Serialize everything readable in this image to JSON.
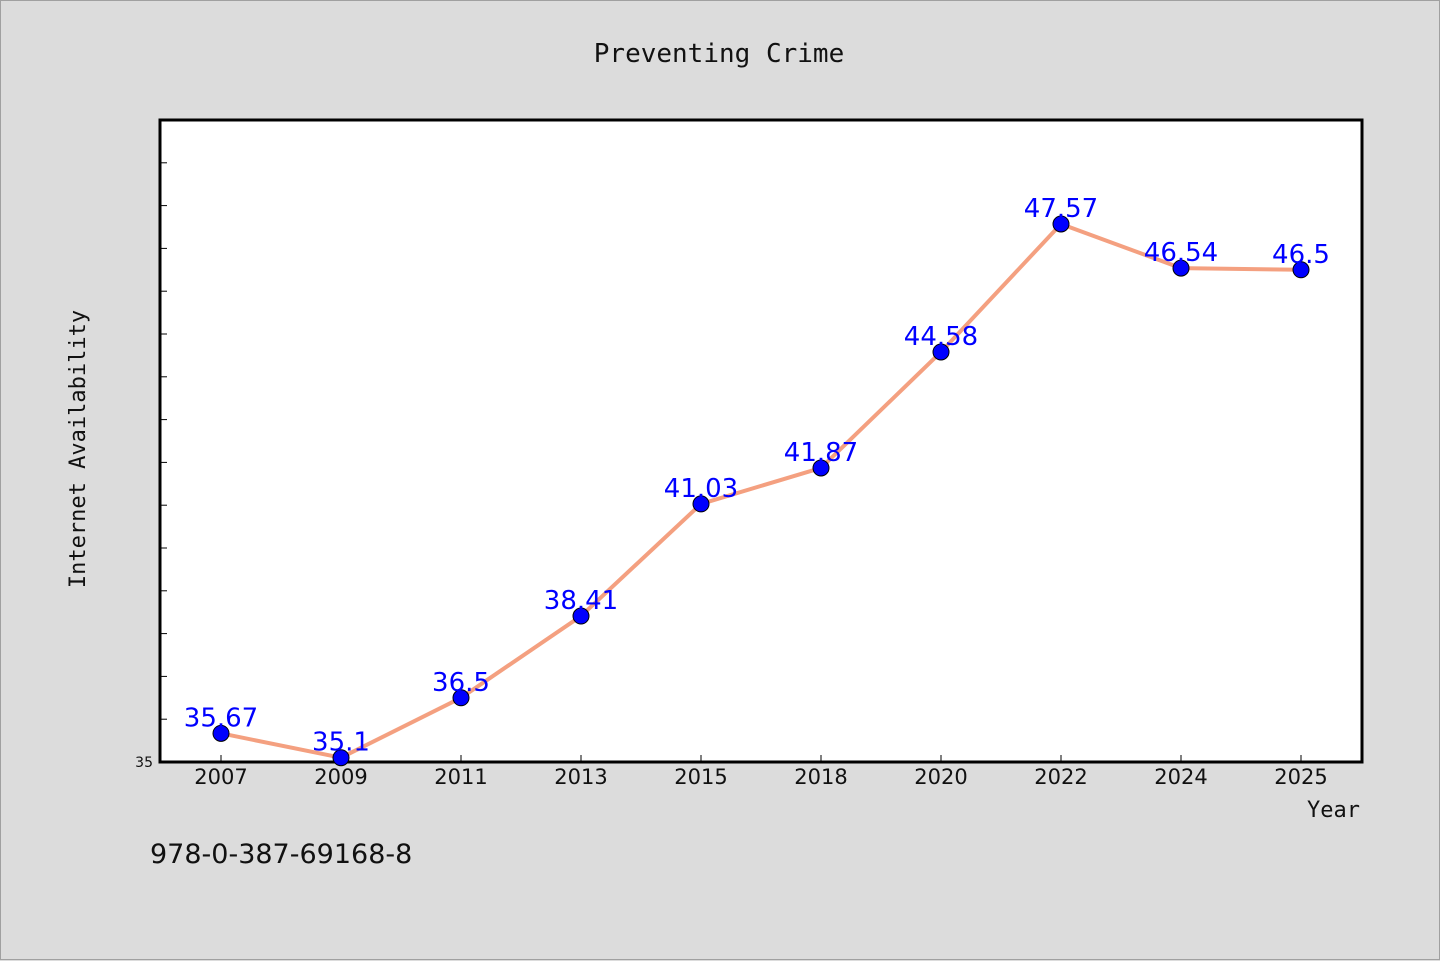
{
  "chart_data": {
    "type": "line",
    "title": "Preventing Crime",
    "xlabel": "Year",
    "ylabel": "Internet Availability",
    "categories": [
      "2007",
      "2009",
      "2011",
      "2013",
      "2015",
      "2018",
      "2020",
      "2022",
      "2024",
      "2025"
    ],
    "series": [
      {
        "values": [
          35.67,
          35.1,
          36.5,
          38.41,
          41.03,
          41.87,
          44.58,
          47.57,
          46.54,
          46.5
        ]
      }
    ],
    "data_labels": [
      "35.67",
      "35.1",
      "36.5",
      "38.41",
      "41.03",
      "41.87",
      "44.58",
      "47.57",
      "46.54",
      "46.5"
    ],
    "y_tick_labels": [
      "35"
    ],
    "ylim": [
      35,
      50
    ],
    "grid": false,
    "legend": "none",
    "colors": {
      "line": "#f4a080",
      "marker": "#0000ff",
      "label": "#0000ff",
      "plot_bg": "#ffffff",
      "page_bg": "#dcdcdc"
    }
  },
  "footer_text": "978-0-387-69168-8"
}
